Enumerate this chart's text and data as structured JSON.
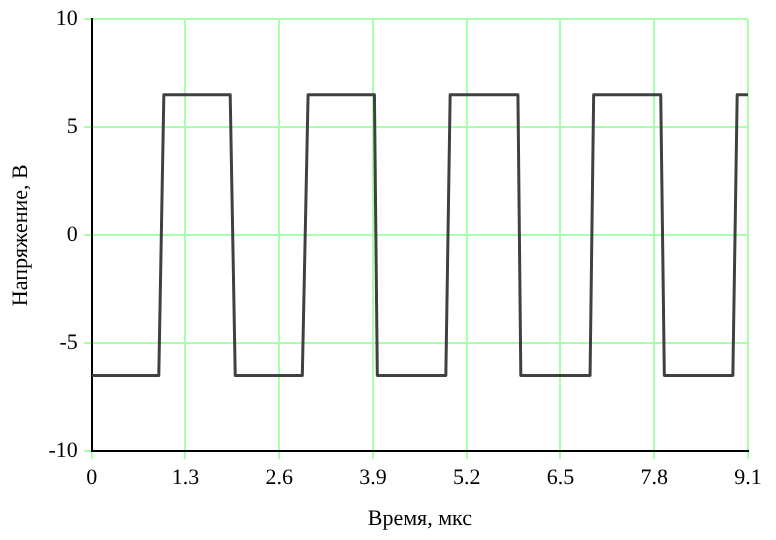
{
  "chart_data": {
    "type": "line",
    "xlabel": "Время, мкс",
    "ylabel": "Напряжение, В",
    "xlim": [
      0,
      9.1
    ],
    "xticks": [
      0,
      1.3,
      2.6,
      3.9,
      5.2,
      6.5,
      7.8,
      9.1
    ],
    "ylim": [
      -10,
      10
    ],
    "yticks": [
      -10,
      -5,
      0,
      5,
      10
    ],
    "grid": true,
    "marker": "none",
    "line_style": "solid",
    "series": [
      {
        "color": "#404040",
        "x": [
          0,
          0.93,
          1.0,
          1.92,
          1.99,
          2.92,
          3.0,
          3.92,
          3.96,
          4.91,
          4.97,
          5.91,
          5.95,
          6.91,
          6.96,
          7.89,
          7.94,
          8.89,
          8.95,
          9.1
        ],
        "values": [
          -6.5,
          -6.5,
          6.5,
          6.5,
          -6.5,
          -6.5,
          6.5,
          6.5,
          -6.5,
          -6.5,
          6.5,
          6.5,
          -6.5,
          -6.5,
          6.5,
          6.5,
          -6.5,
          -6.5,
          6.5,
          6.5
        ]
      }
    ]
  }
}
